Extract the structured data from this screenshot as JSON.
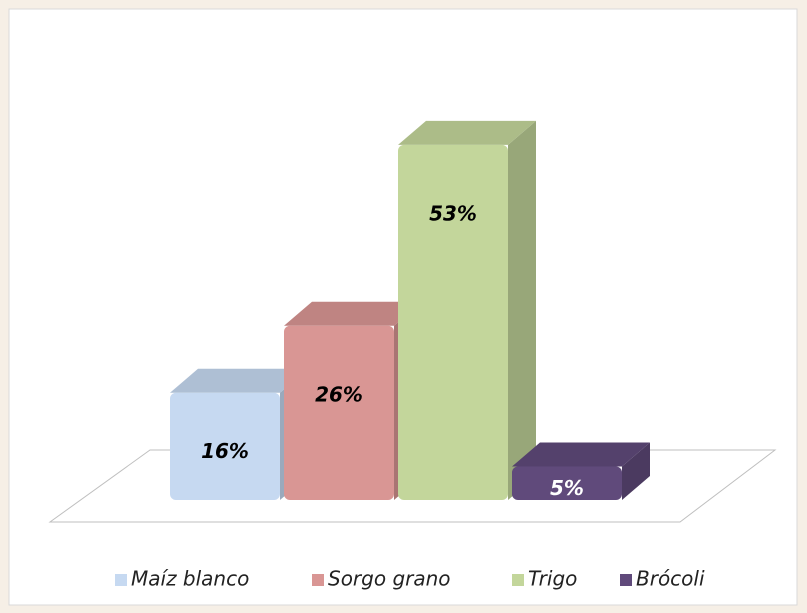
{
  "chart_data": {
    "type": "bar3d",
    "categories": [
      "Maíz blanco",
      "Sorgo grano",
      "Trigo",
      "Brócoli"
    ],
    "values": [
      16,
      26,
      53,
      5
    ],
    "value_labels": [
      "16%",
      "26%",
      "53%",
      "5%"
    ],
    "colors": [
      "#c6d9f1",
      "#d99694",
      "#c3d69b",
      "#604a7b"
    ],
    "legend": "bottom"
  }
}
